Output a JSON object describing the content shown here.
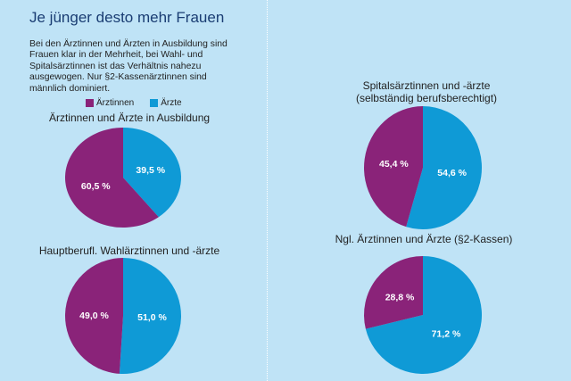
{
  "header": {
    "title": "Je jünger desto mehr Frauen",
    "intro": "Bei den Ärztinnen und Ärzten in Ausbildung sind Frauen klar in der Mehrheit, bei Wahl- und Spitalsärztinnen ist das Verhältnis nahezu ausgewogen. Nur §2-Kassenärztinnen sind männlich dominiert."
  },
  "legend": {
    "female_label": "Ärztinnen",
    "male_label": "Ärzte"
  },
  "colors": {
    "female": "#8a2379",
    "male": "#0f9ad6",
    "background": "#bfe3f6"
  },
  "chart_data": [
    {
      "type": "pie",
      "title": "Ärztinnen und Ärzte in Ausbildung",
      "series": [
        {
          "name": "Ärztinnen",
          "value": 60.5,
          "label": "60,5 %"
        },
        {
          "name": "Ärzte",
          "value": 39.5,
          "label": "39,5 %"
        }
      ]
    },
    {
      "type": "pie",
      "title": "Hauptberufl. Wahlärztinnen und -ärzte",
      "series": [
        {
          "name": "Ärztinnen",
          "value": 49.0,
          "label": "49,0 %"
        },
        {
          "name": "Ärzte",
          "value": 51.0,
          "label": "51,0 %"
        }
      ]
    },
    {
      "type": "pie",
      "title": "Spitalsärztinnen und -ärzte (selbständig berufsberechtigt)",
      "series": [
        {
          "name": "Ärztinnen",
          "value": 45.4,
          "label": "45,4 %"
        },
        {
          "name": "Ärzte",
          "value": 54.6,
          "label": "54,6 %"
        }
      ]
    },
    {
      "type": "pie",
      "title": "Ngl. Ärztinnen und Ärzte (§2-Kassen)",
      "series": [
        {
          "name": "Ärztinnen",
          "value": 28.8,
          "label": "28,8 %"
        },
        {
          "name": "Ärzte",
          "value": 71.2,
          "label": "71,2 %"
        }
      ]
    }
  ]
}
